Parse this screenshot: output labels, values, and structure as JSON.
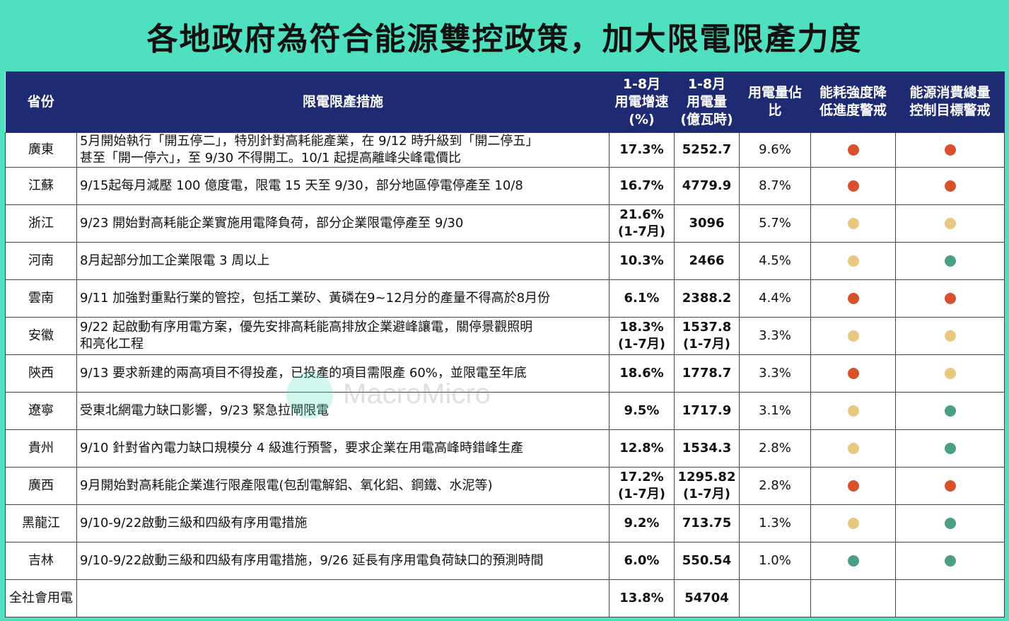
{
  "title": "各地政府為符合能源雙控政策，加大限電限產力度",
  "watermark": "MacroMicro",
  "colors": {
    "red": "#D9512C",
    "yellow": "#E8C77E",
    "green": "#4A9E86"
  },
  "headers": {
    "province": "省份",
    "measure": "限電限產措施",
    "growth": [
      "1-8月",
      "用電增速",
      "(%)"
    ],
    "usage": [
      "1-8月",
      "用電量",
      "(億瓦時)"
    ],
    "share": [
      "用電量佔",
      "比"
    ],
    "intensity": [
      "能耗強度降",
      "低進度警戒"
    ],
    "total": [
      "能源消費總量",
      "控制目標警戒"
    ]
  },
  "rows": [
    {
      "province": "廣東",
      "measure": [
        "5月開始執行「開五停二」，特別針對高耗能產業，在 9/12 時升級到「開二停五」",
        "甚至「開一停六」，至 9/30 不得開工。10/1 起提高離峰尖峰電價比"
      ],
      "growth": [
        "17.3%"
      ],
      "usage": [
        "5252.7"
      ],
      "share": "9.6%",
      "intensity": "red",
      "total": "red"
    },
    {
      "province": "江蘇",
      "measure": [
        "9/15起每月減壓 100 億度電，限電 15 天至 9/30，部分地區停電停產至 10/8"
      ],
      "growth": [
        "16.7%"
      ],
      "usage": [
        "4779.9"
      ],
      "share": "8.7%",
      "intensity": "red",
      "total": "red"
    },
    {
      "province": "浙江",
      "measure": [
        "9/23 開始對高耗能企業實施用電降負荷，部分企業限電停產至 9/30"
      ],
      "growth": [
        "21.6%",
        "(1-7月)"
      ],
      "usage": [
        "3096"
      ],
      "share": "5.7%",
      "intensity": "yellow",
      "total": "yellow"
    },
    {
      "province": "河南",
      "measure": [
        "8月起部分加工企業限電 3 周以上"
      ],
      "growth": [
        "10.3%"
      ],
      "usage": [
        "2466"
      ],
      "share": "4.5%",
      "intensity": "yellow",
      "total": "green"
    },
    {
      "province": "雲南",
      "measure": [
        "9/11 加強對重點行業的管控，包括工業矽、黃磷在9~12月分的產量不得高於8月份"
      ],
      "growth": [
        "6.1%"
      ],
      "usage": [
        "2388.2"
      ],
      "share": "4.4%",
      "intensity": "red",
      "total": "red"
    },
    {
      "province": "安徽",
      "measure": [
        "9/22 起啟動有序用電方案，優先安排高耗能高排放企業避峰讓電，關停景觀照明",
        "和亮化工程"
      ],
      "growth": [
        "18.3%",
        "(1-7月)"
      ],
      "usage": [
        "1537.8",
        "(1-7月)"
      ],
      "share": "3.3%",
      "intensity": "yellow",
      "total": "yellow"
    },
    {
      "province": "陝西",
      "measure": [
        "9/13 要求新建的兩高項目不得投產，已投產的項目需限產 60%，並限電至年底"
      ],
      "growth": [
        "18.6%"
      ],
      "usage": [
        "1778.7"
      ],
      "share": "3.3%",
      "intensity": "red",
      "total": "yellow"
    },
    {
      "province": "遼寧",
      "measure": [
        "受東北網電力缺口影響，9/23 緊急拉閘限電"
      ],
      "growth": [
        "9.5%"
      ],
      "usage": [
        "1717.9"
      ],
      "share": "3.1%",
      "intensity": "yellow",
      "total": "green"
    },
    {
      "province": "貴州",
      "measure": [
        "9/10 針對省內電力缺口規模分 4 級進行預警，要求企業在用電高峰時錯峰生產"
      ],
      "growth": [
        "12.8%"
      ],
      "usage": [
        "1534.3"
      ],
      "share": "2.8%",
      "intensity": "yellow",
      "total": "green"
    },
    {
      "province": "廣西",
      "measure": [
        "9月開始對高耗能企業進行限產限電(包刮電解鋁、氧化鋁、鋼鐵、水泥等)"
      ],
      "growth": [
        "17.2%",
        "(1-7月)"
      ],
      "usage": [
        "1295.82",
        "(1-7月)"
      ],
      "share": "2.8%",
      "intensity": "red",
      "total": "red"
    },
    {
      "province": "黑龍江",
      "measure": [
        "9/10-9/22啟動三級和四級有序用電措施"
      ],
      "growth": [
        "9.2%"
      ],
      "usage": [
        "713.75"
      ],
      "share": "1.3%",
      "intensity": "yellow",
      "total": "green"
    },
    {
      "province": "吉林",
      "measure": [
        "9/10-9/22啟動三級和四級有序用電措施，9/26 延長有序用電負荷缺口的預測時間"
      ],
      "growth": [
        "6.0%"
      ],
      "usage": [
        "550.54"
      ],
      "share": "1.0%",
      "intensity": "green",
      "total": "green"
    },
    {
      "province": "全社會用電",
      "measure": [],
      "growth": [
        "13.8%"
      ],
      "usage": [
        "54704"
      ],
      "share": "",
      "intensity": null,
      "total": null
    }
  ]
}
